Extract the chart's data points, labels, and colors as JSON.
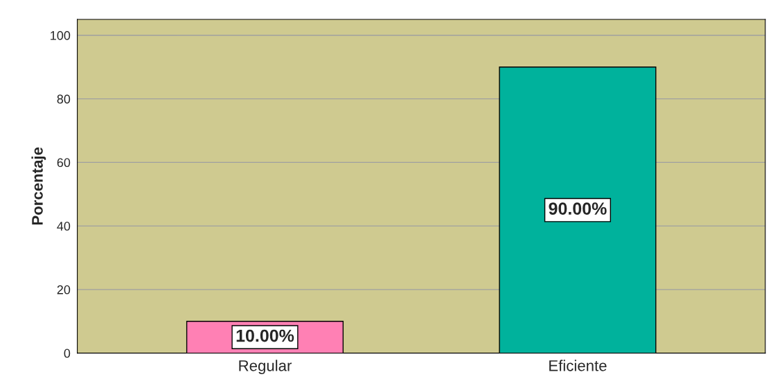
{
  "chart_data": {
    "type": "bar",
    "ylabel": "Porcentaje",
    "categories": [
      "Regular",
      "Eficiente"
    ],
    "values": [
      10,
      90
    ],
    "colors": [
      "#ff80b4",
      "#00b29c"
    ],
    "value_labels": [
      "10.00%",
      "90.00%"
    ],
    "ylim": [
      0,
      105
    ],
    "yticks": [
      0,
      20,
      40,
      60,
      80,
      100
    ],
    "grid": "y"
  }
}
